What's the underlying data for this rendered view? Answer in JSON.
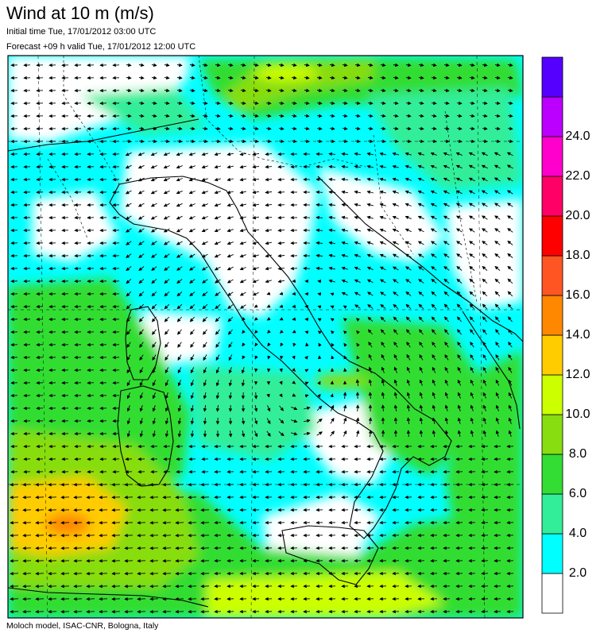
{
  "header": {
    "title": "Wind at 10 m (m/s)",
    "initial_time": "Initial time  Tue, 17/01/2012 03:00 UTC",
    "forecast_line": "Forecast +09 h valid  Tue, 17/01/2012 12:00 UTC"
  },
  "footer": {
    "credit": "Moloch model, ISAC-CNR, Bologna, Italy"
  },
  "colorbar": {
    "unit": "m/s",
    "bins": [
      {
        "min": 0,
        "max": 2,
        "color": "#ffffff"
      },
      {
        "min": 2,
        "max": 4,
        "color": "#00ffff"
      },
      {
        "min": 4,
        "max": 6,
        "color": "#33ee99"
      },
      {
        "min": 6,
        "max": 8,
        "color": "#33dd33"
      },
      {
        "min": 8,
        "max": 10,
        "color": "#88dd11"
      },
      {
        "min": 10,
        "max": 12,
        "color": "#ccff00"
      },
      {
        "min": 12,
        "max": 14,
        "color": "#ffcc00"
      },
      {
        "min": 14,
        "max": 16,
        "color": "#ff8800"
      },
      {
        "min": 16,
        "max": 18,
        "color": "#ff5522"
      },
      {
        "min": 18,
        "max": 20,
        "color": "#ff0000"
      },
      {
        "min": 20,
        "max": 22,
        "color": "#ff0066"
      },
      {
        "min": 22,
        "max": 24,
        "color": "#ff00cc"
      },
      {
        "min": 24,
        "max": 26,
        "color": "#bb00ff"
      },
      {
        "min": 26,
        "max": 28,
        "color": "#5500ff"
      }
    ],
    "labels": [
      "2.0",
      "4.0",
      "6.0",
      "8.0",
      "10.0",
      "12.0",
      "14.0",
      "16.0",
      "18.0",
      "20.0",
      "22.0",
      "24.0"
    ]
  },
  "map": {
    "region": "Italy and central Mediterranean",
    "field": "10 m wind speed (shaded) and direction (arrows)",
    "max_speed_area": "west of Sardinia, 14-16 m/s"
  }
}
